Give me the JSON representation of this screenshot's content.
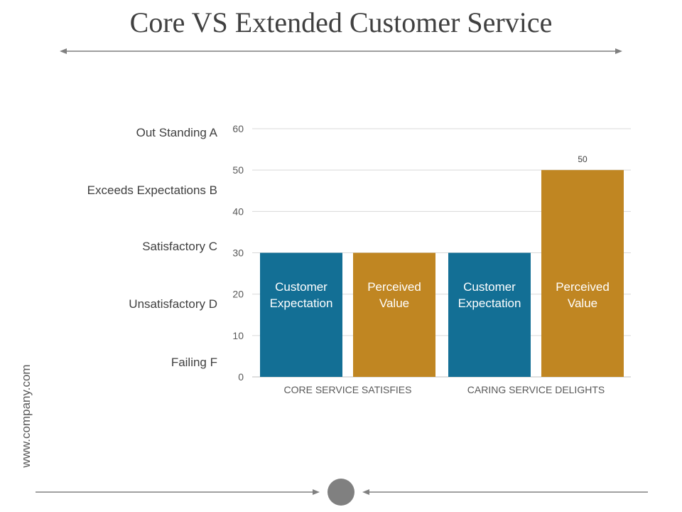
{
  "title": "Core VS Extended Customer Service",
  "side_text": "www.company.com",
  "grade_labels": [
    {
      "label": "Out Standing A",
      "level": 59
    },
    {
      "label": "Exceeds Expectations B",
      "level": 45
    },
    {
      "label": "Satisfactory C",
      "level": 31.5
    },
    {
      "label": "Unsatisfactory D",
      "level": 17.5
    },
    {
      "label": "Failing F",
      "level": 3.5
    }
  ],
  "colors": {
    "blue": "#136f95",
    "gold": "#c08622",
    "grid": "#d9d9d9",
    "text": "#595959",
    "deco": "#808080"
  },
  "chart_data": {
    "type": "bar",
    "categories": [
      "CORE SERVICE SATISFIES",
      "CARING SERVICE DELIGHTS"
    ],
    "series": [
      {
        "name": "Customer Expectation",
        "values": [
          30,
          30
        ],
        "color": "#136f95"
      },
      {
        "name": "Perceived Value",
        "values": [
          30,
          50
        ],
        "color": "#c08622"
      }
    ],
    "bar_labels": [
      [
        "Customer",
        "Expectation"
      ],
      [
        "Perceived",
        "Value"
      ]
    ],
    "data_labels": {
      "series": 1,
      "category": 1,
      "text": "50"
    },
    "yticks": [
      "0",
      "10",
      "20",
      "30",
      "40",
      "50",
      "60"
    ],
    "ylim": [
      0,
      60
    ],
    "grid": true,
    "legend": "none"
  }
}
